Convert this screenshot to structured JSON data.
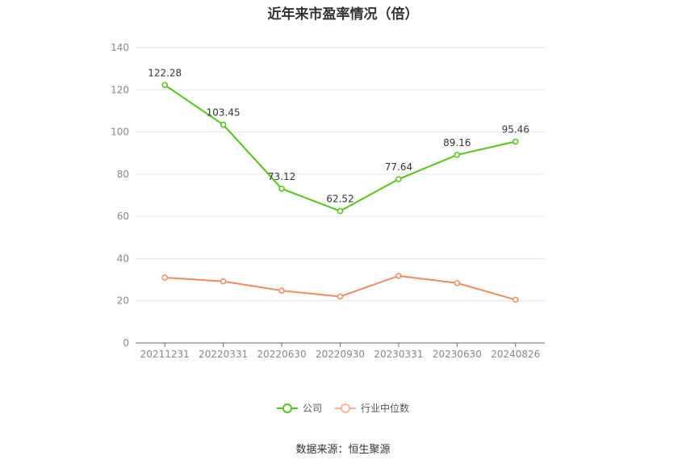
{
  "chart_data": {
    "type": "line",
    "title": "近年来市盈率情况（倍）",
    "categories": [
      "20211231",
      "20220331",
      "20220630",
      "20220930",
      "20230331",
      "20230630",
      "20240826"
    ],
    "series": [
      {
        "name": "公司",
        "color": "#52c41a",
        "values": [
          122.28,
          103.45,
          73.12,
          62.52,
          77.64,
          89.16,
          95.46
        ],
        "labels": [
          "122.28",
          "103.45",
          "73.12",
          "62.52",
          "77.64",
          "89.16",
          "95.46"
        ]
      },
      {
        "name": "行业中位数",
        "color": "#f08a5d",
        "values": [
          31.0,
          29.2,
          24.8,
          22.0,
          31.8,
          28.4,
          20.5
        ]
      }
    ],
    "ylim": [
      0,
      140
    ],
    "yticks": [
      "0",
      "20",
      "40",
      "60",
      "80",
      "100",
      "120",
      "140"
    ],
    "grid": true,
    "legend": "bottom-center"
  },
  "source": "数据来源：恒生聚源"
}
